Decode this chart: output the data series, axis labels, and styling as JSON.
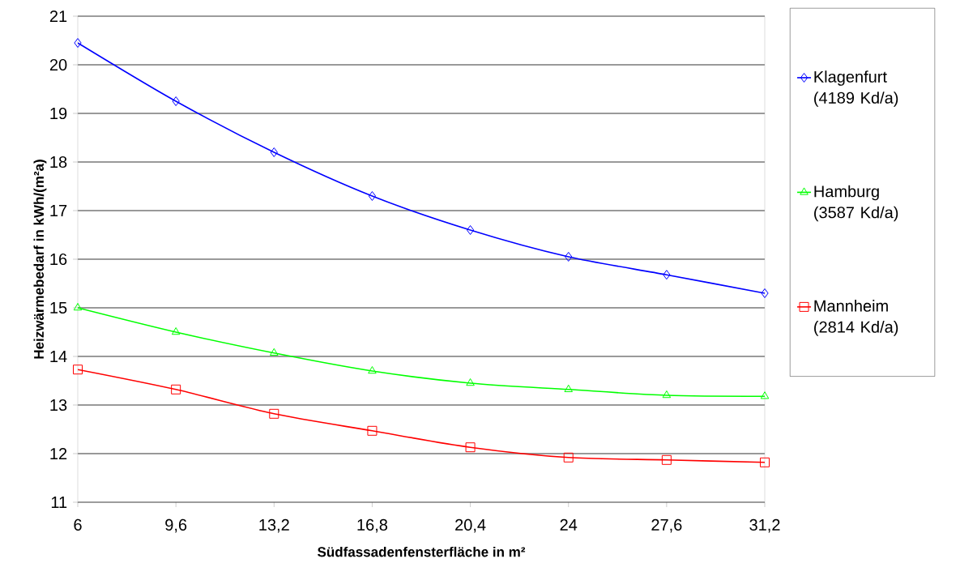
{
  "chart_data": {
    "type": "line",
    "xlabel": "Südfassadenfensterfläche in m²",
    "ylabel": "Heizwärmebedarf in kWh/(m²a)",
    "categories": [
      "6",
      "9,6",
      "13,2",
      "16,8",
      "20,4",
      "24",
      "27,6",
      "31,2"
    ],
    "ylim": [
      11,
      21
    ],
    "yticks": [
      11,
      12,
      13,
      14,
      15,
      16,
      17,
      18,
      19,
      20,
      21
    ],
    "grid": "y",
    "legend": "right",
    "series": [
      {
        "name": "Klagenfurt (4189 Kd/a)",
        "color": "#0000ff",
        "marker": "diamond",
        "values": [
          20.45,
          19.25,
          18.2,
          17.3,
          16.6,
          16.05,
          15.68,
          15.3
        ]
      },
      {
        "name": "Hamburg (3587 Kd/a)",
        "color": "#00ff00",
        "marker": "triangle",
        "values": [
          15.0,
          14.5,
          14.07,
          13.7,
          13.45,
          13.32,
          13.2,
          13.18
        ]
      },
      {
        "name": "Mannheim (2814 Kd/a)",
        "color": "#ff0000",
        "marker": "square",
        "values": [
          13.73,
          13.32,
          12.82,
          12.47,
          12.13,
          11.92,
          11.87,
          11.82
        ]
      }
    ]
  }
}
